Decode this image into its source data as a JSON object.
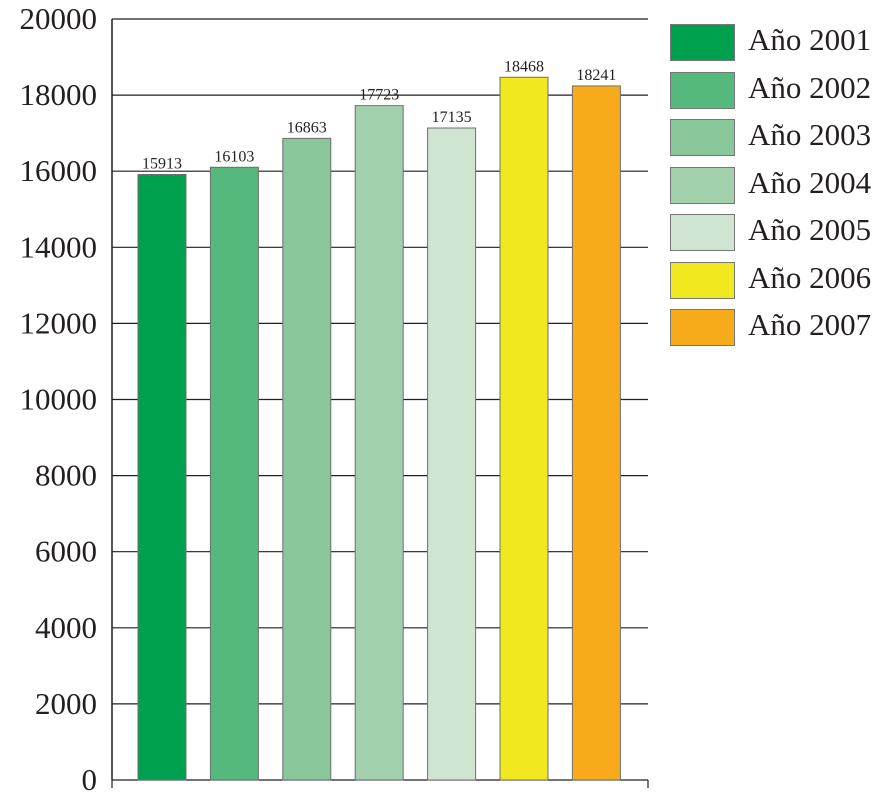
{
  "chart_data": {
    "type": "bar",
    "title": "",
    "xlabel": "",
    "ylabel": "",
    "ylim": [
      0,
      20000
    ],
    "yticks": [
      "0",
      "2000",
      "4000",
      "6000",
      "8000",
      "10000",
      "12000",
      "14000",
      "16000",
      "18000",
      "20000"
    ],
    "grid": true,
    "legend_position": "right",
    "categories": [
      "Año 2001",
      "Año 2002",
      "Año 2003",
      "Año 2004",
      "Año 2005",
      "Año 2006",
      "Año 2007"
    ],
    "values": [
      15913,
      16103,
      16863,
      17723,
      17135,
      18468,
      18241
    ],
    "data_labels": [
      "15913",
      "16103",
      "16863",
      "17723",
      "17135",
      "18468",
      "18241"
    ],
    "colors": [
      "#00a14e",
      "#55b87c",
      "#89c79b",
      "#a2d0ad",
      "#cfe5d2",
      "#f1e81f",
      "#f8ab1a"
    ]
  }
}
